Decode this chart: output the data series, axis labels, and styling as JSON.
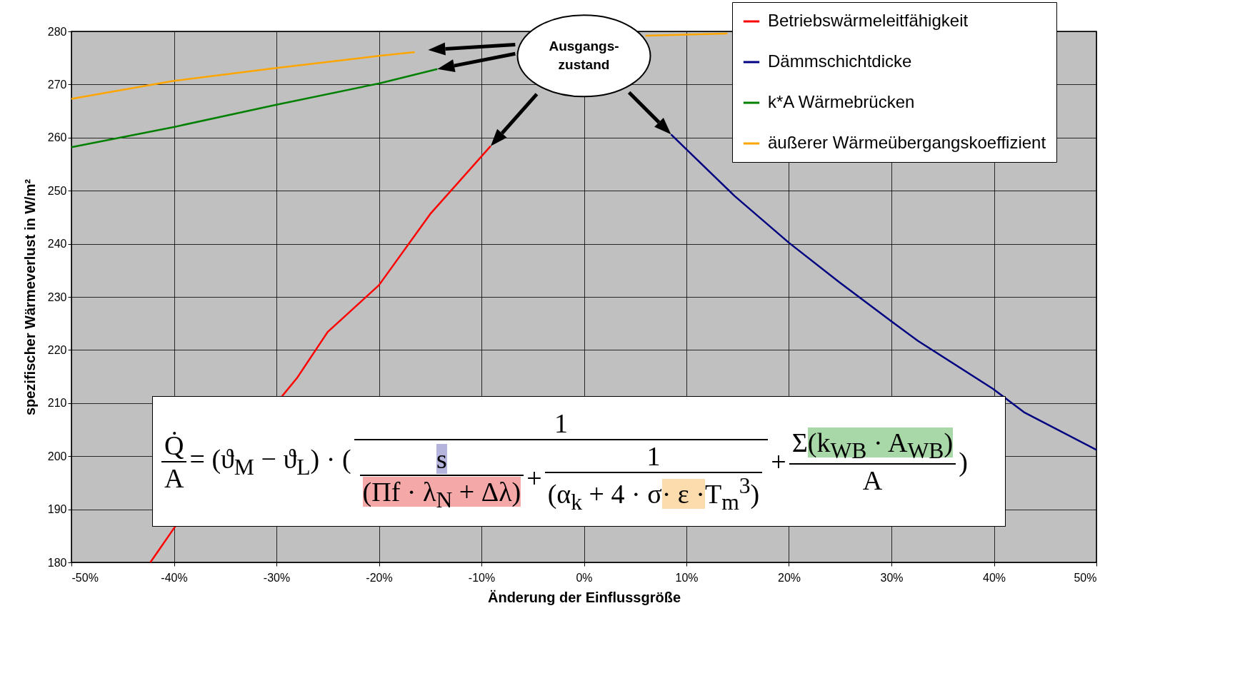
{
  "chart_data": {
    "type": "line",
    "xlabel": "Änderung der Einflussgröße",
    "ylabel": "spezifischer Wärmeverlust in W/m²",
    "xlim": [
      -50,
      50
    ],
    "xticks": [
      {
        "value": -50,
        "label": "-50%"
      },
      {
        "value": -40,
        "label": "-40%"
      },
      {
        "value": -30,
        "label": "-30%"
      },
      {
        "value": -20,
        "label": "-20%"
      },
      {
        "value": -10,
        "label": "-10%"
      },
      {
        "value": 0,
        "label": "0%"
      },
      {
        "value": 10,
        "label": "10%"
      },
      {
        "value": 20,
        "label": "20%"
      },
      {
        "value": 30,
        "label": "30%"
      },
      {
        "value": 40,
        "label": "40%"
      },
      {
        "value": 50,
        "label": "50%"
      }
    ],
    "ylim": [
      180,
      280
    ],
    "yticks": [
      180,
      190,
      200,
      210,
      220,
      230,
      240,
      250,
      260,
      270,
      280
    ],
    "grid": true,
    "legend": "top right",
    "line_style": "solid",
    "marker": "none",
    "series": [
      {
        "name": "Betriebswärmeleitfähigkeit",
        "color": "#ff0000",
        "x": [
          -42.3,
          -39.9,
          -28,
          -25,
          -20,
          -15,
          -9.1
        ],
        "values": [
          180,
          186.7,
          214.7,
          223.4,
          232.2,
          245.6,
          258.4
        ]
      },
      {
        "name": "Dämmschichtdicke",
        "color": "#000080",
        "x": [
          8.5,
          14.7,
          20,
          24.9,
          30,
          32.6,
          39.9,
          43,
          50
        ],
        "values": [
          260.6,
          249,
          240.2,
          232.8,
          225.4,
          221.7,
          212.7,
          208.2,
          201.2
        ]
      },
      {
        "name": "k*A Wärmebrücken",
        "color": "#008000",
        "x": [
          -50,
          -40,
          -30,
          -20,
          -14.3
        ],
        "values": [
          258.2,
          262,
          266.2,
          270.2,
          272.9
        ]
      },
      {
        "name": "äußerer Wärmeübergangskoeffizient",
        "color": "#ffa500",
        "x": [
          -50,
          -40,
          -30,
          -20,
          -16.5,
          -10,
          6,
          14
        ],
        "values": [
          267.3,
          270.7,
          273.1,
          275.4,
          276.1,
          null,
          279.2,
          279.6
        ]
      }
    ],
    "annotations": [
      "Ausgangs-\nzustand",
      "Q̇",
      "A",
      "= (ϑ$_{M}$ − ϑ$_{L}$) · (",
      "1",
      "s",
      "(Πf · λ$_{N}$ + Δλ)",
      "+",
      "1",
      "(α$_{k}$ + 4 · σ",
      "· ε ·",
      "T$_{m}$$^{3}$)",
      "+",
      "Σ",
      "(k$_{WB}$ · A$_{WB}$)",
      "A",
      ")"
    ]
  }
}
